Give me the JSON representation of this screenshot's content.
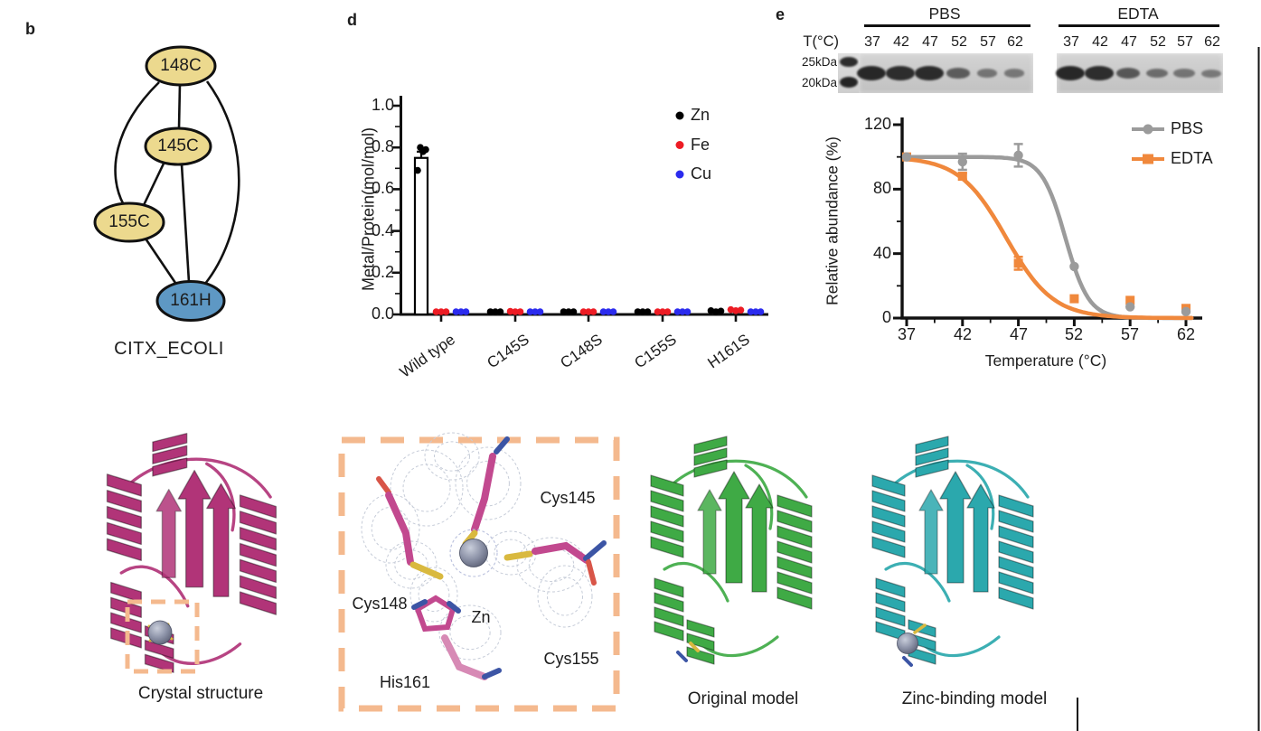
{
  "figure": {
    "background": "#ffffff",
    "panel_letters": {
      "b": "b",
      "d": "d",
      "e": "e"
    }
  },
  "panel_b": {
    "nodes": [
      {
        "label": "148C",
        "type": "cysteine"
      },
      {
        "label": "145C",
        "type": "cysteine"
      },
      {
        "label": "155C",
        "type": "cysteine"
      },
      {
        "label": "161H",
        "type": "histidine"
      }
    ],
    "edges": [
      "148C-145C",
      "148C-155C",
      "148C-161H",
      "145C-155C",
      "145C-161H",
      "155C-161H"
    ],
    "caption": "CITX_ECOLI",
    "colors": {
      "cysteine_node": "#ecd98e",
      "histidine_node": "#5e98c4",
      "edge": "#111111"
    }
  },
  "panel_d": {
    "ylabel": "Metal/Protein(mol/mol)",
    "yticks": [
      "1.0",
      "0.8",
      "0.6",
      "0.4",
      "0.2",
      "0.0"
    ],
    "categories": [
      "Wild type",
      "C145S",
      "C148S",
      "C155S",
      "H161S"
    ],
    "legend": [
      {
        "label": "Zn",
        "color": "#000000"
      },
      {
        "label": "Fe",
        "color": "#ed1c24"
      },
      {
        "label": "Cu",
        "color": "#2b2bee"
      }
    ]
  },
  "panel_e": {
    "gel": {
      "temperature_label": "T(°C)",
      "marker_labels": [
        "25kDa",
        "20kDa"
      ],
      "groups": [
        {
          "name": "PBS",
          "lanes": [
            "37",
            "42",
            "47",
            "52",
            "57",
            "62"
          ],
          "band_intensity": [
            1.0,
            0.95,
            0.97,
            0.55,
            0.35,
            0.32
          ]
        },
        {
          "name": "EDTA",
          "lanes": [
            "37",
            "42",
            "47",
            "52",
            "57",
            "62"
          ],
          "band_intensity": [
            1.0,
            0.95,
            0.6,
            0.42,
            0.36,
            0.3
          ]
        }
      ]
    },
    "plot": {
      "ylabel": "Relative abundance (%)",
      "xlabel": "Temperature (°C)",
      "yticks": [
        "120",
        "80",
        "40",
        "0"
      ],
      "xticks": [
        "37",
        "42",
        "47",
        "52",
        "57",
        "62"
      ],
      "legend": [
        {
          "label": "PBS",
          "color": "#9b9b9b",
          "marker": "circle"
        },
        {
          "label": "EDTA",
          "color": "#f0883c",
          "marker": "square"
        }
      ]
    }
  },
  "structures": {
    "crystal": {
      "caption": "Crystal structure",
      "ribbon_color": "#b13478"
    },
    "zinc_site": {
      "frame_color": "#f4b98e",
      "labels": {
        "cys145": "Cys145",
        "cys148": "Cys148",
        "cys155": "Cys155",
        "his161": "His161",
        "zn": "Zn"
      },
      "stick_color": "#c2498f",
      "sulfur_color": "#d9b93f",
      "zinc_sphere_color": "#8d93a8"
    },
    "original": {
      "caption": "Original model",
      "ribbon_color": "#3faa45"
    },
    "zinc_model": {
      "caption": "Zinc-binding model",
      "ribbon_color": "#2ba8ad"
    }
  },
  "chart_data": [
    {
      "type": "bar",
      "ylabel": "Metal/Protein(mol/mol)",
      "ylim": [
        0.0,
        1.0
      ],
      "ytick_step": 0.2,
      "categories": [
        "Wild type",
        "C145S",
        "C148S",
        "C155S",
        "H161S"
      ],
      "series": [
        {
          "name": "Zn",
          "color": "#000000",
          "values": [
            0.75,
            0.01,
            0.01,
            0.01,
            0.015
          ]
        },
        {
          "name": "Fe",
          "color": "#ed1c24",
          "values": [
            0.005,
            0.012,
            0.008,
            0.008,
            0.02
          ]
        },
        {
          "name": "Cu",
          "color": "#2b2bee",
          "values": [
            0.005,
            0.005,
            0.005,
            0.005,
            0.005
          ]
        }
      ],
      "bar": {
        "category": "Wild type",
        "series": "Zn",
        "value": 0.75,
        "error": 0.03,
        "replicates": [
          0.69,
          0.78,
          0.79,
          0.8
        ]
      },
      "legend_position": "top-right",
      "grid": false
    },
    {
      "type": "line",
      "xlabel": "Temperature (°C)",
      "ylabel": "Relative abundance (%)",
      "xlim": [
        37,
        62
      ],
      "ylim": [
        0,
        120
      ],
      "x": [
        37,
        42,
        47,
        52,
        57,
        62
      ],
      "series": [
        {
          "name": "PBS",
          "color": "#9b9b9b",
          "marker": "circle",
          "values": [
            100,
            97,
            101,
            32,
            7,
            4
          ],
          "errors": [
            0,
            5,
            7,
            0,
            0,
            0
          ],
          "fit": {
            "midpoint": 51.2,
            "width": 1.05
          }
        },
        {
          "name": "EDTA",
          "color": "#f0883c",
          "marker": "square",
          "values": [
            100,
            88,
            34,
            12,
            11,
            6
          ],
          "errors": [
            0,
            2,
            4,
            0,
            0,
            0
          ],
          "fit": {
            "midpoint": 45.9,
            "width": 2.1
          }
        }
      ],
      "legend_position": "top-right",
      "grid": false
    }
  ]
}
